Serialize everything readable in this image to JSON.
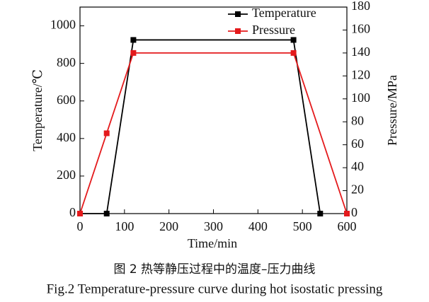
{
  "chart_data": {
    "type": "line",
    "x_label": "Time/min",
    "y_label": "Temperature/℃",
    "y2_label": "Pressure/MPa",
    "series": [
      {
        "name": "Temperature",
        "color": "#000000",
        "x": [
          0,
          60,
          120,
          480,
          540
        ],
        "values": [
          0,
          0,
          925,
          925,
          0
        ]
      },
      {
        "name": "Pressure",
        "color": "#e41a1c",
        "axis": "y2",
        "x": [
          0,
          60,
          120,
          480,
          600
        ],
        "values": [
          0,
          70,
          140,
          140,
          0
        ]
      }
    ],
    "xlim": [
      0,
      600
    ],
    "xticks": [
      0,
      100,
      200,
      300,
      400,
      500,
      600
    ],
    "ylim": [
      0,
      1100
    ],
    "yticks": [
      0,
      200,
      400,
      600,
      800,
      1000
    ],
    "y2lim": [
      0,
      180
    ],
    "y2ticks": [
      0,
      20,
      40,
      60,
      80,
      100,
      120,
      140,
      160,
      180
    ],
    "legend": "upper right",
    "caption_cn": "图 2  热等静压过程中的温度–压力曲线",
    "caption_en": "Fig.2  Temperature-pressure curve during hot isostatic pressing"
  }
}
